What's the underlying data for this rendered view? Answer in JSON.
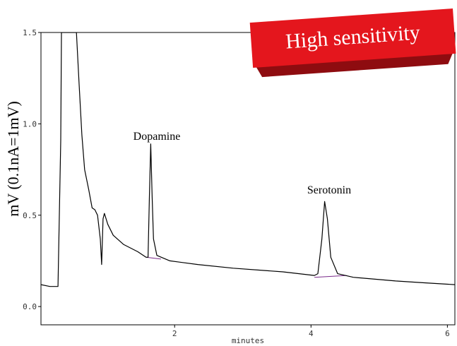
{
  "chart_data": {
    "type": "line",
    "ylabel": "mV (0.1nA=1mV)",
    "xlabel": "minutes",
    "annotations": [
      "Dopamine",
      "Serotonin"
    ],
    "badge": "High sensitivity",
    "color": "#000000",
    "x": [
      0.04,
      0.17,
      0.29,
      0.33,
      0.34,
      0.56,
      0.6,
      0.64,
      0.68,
      0.74,
      0.79,
      0.83,
      0.87,
      0.91,
      0.93,
      0.95,
      0.97,
      1.02,
      1.1,
      1.25,
      1.46,
      1.58,
      1.61,
      1.63,
      1.65,
      1.67,
      1.69,
      1.74,
      1.93,
      2.34,
      2.86,
      3.59,
      4.05,
      4.1,
      4.16,
      4.2,
      4.24,
      4.29,
      4.39,
      4.62,
      5.24,
      5.66,
      6.11
    ],
    "values": [
      0.12,
      0.11,
      0.11,
      0.91,
      1.5,
      1.5,
      1.21,
      0.94,
      0.75,
      0.64,
      0.54,
      0.53,
      0.5,
      0.37,
      0.23,
      0.48,
      0.51,
      0.45,
      0.39,
      0.34,
      0.3,
      0.27,
      0.27,
      0.6,
      0.89,
      0.6,
      0.37,
      0.28,
      0.25,
      0.23,
      0.21,
      0.19,
      0.17,
      0.18,
      0.37,
      0.575,
      0.48,
      0.27,
      0.18,
      0.16,
      0.14,
      0.13,
      0.12
    ],
    "baselines": [
      {
        "color": "#7a2a8a",
        "x": [
          1.58,
          1.8
        ],
        "values": [
          0.27,
          0.26
        ]
      },
      {
        "color": "#7a2a8a",
        "x": [
          4.05,
          4.52
        ],
        "values": [
          0.16,
          0.17
        ]
      }
    ],
    "xlim": [
      0.04,
      6.11
    ],
    "ylim": [
      -0.1,
      1.5
    ],
    "xticks": [
      2,
      4,
      6
    ],
    "yticks": [
      {
        "value": 0,
        "label": "0.0"
      },
      0.5,
      {
        "value": 1,
        "label": "1.0"
      },
      1.5
    ]
  }
}
